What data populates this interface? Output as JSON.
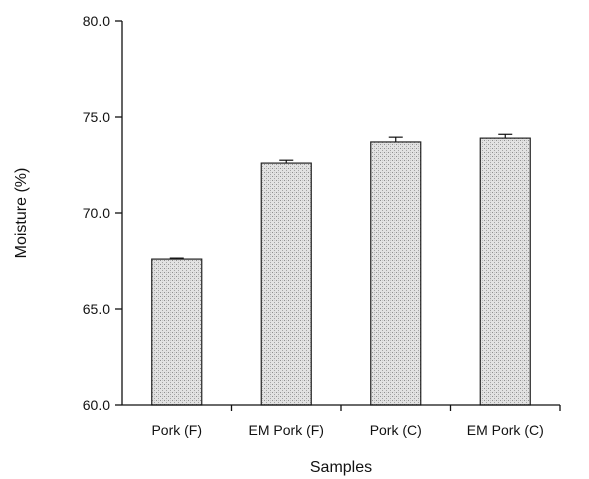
{
  "chart_data": {
    "type": "bar",
    "title": "",
    "xlabel": "Samples",
    "ylabel": "Moisture (%)",
    "categories": [
      "Pork (F)",
      "EM Pork (F)",
      "Pork (C)",
      "EM Pork (C)"
    ],
    "values": [
      67.6,
      72.6,
      73.7,
      73.9
    ],
    "errors": [
      0.05,
      0.15,
      0.25,
      0.2
    ],
    "ylim": [
      60.0,
      80.0
    ],
    "yticks": [
      "60.0",
      "65.0",
      "70.0",
      "75.0",
      "80.0"
    ],
    "grid": false,
    "bar_color": "#d9d9d9",
    "bar_pattern": "stippled"
  }
}
